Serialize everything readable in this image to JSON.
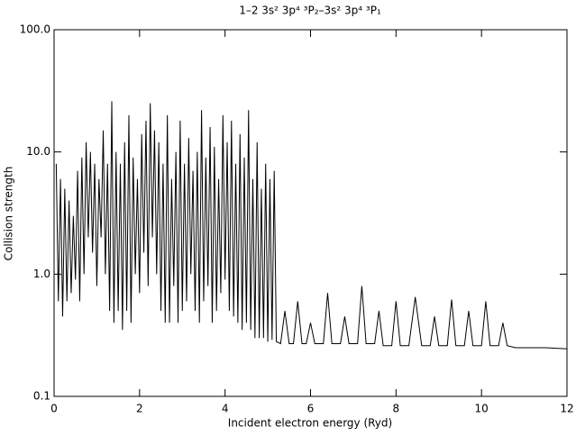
{
  "chart_data": {
    "type": "line",
    "title": "1–2 3s² 3p⁴ ³P₂–3s² 3p⁴ ³P₁",
    "x_label": "Incident electron energy (Ryd)",
    "y_label": "Collision strength",
    "color": "#000000",
    "ylog": true,
    "xlim": [
      0,
      12
    ],
    "xticks": [
      0,
      2,
      4,
      6,
      8,
      10,
      12
    ],
    "ylim": [
      0.1,
      100
    ],
    "yticks": [
      {
        "value": 0.1,
        "label": "0.1"
      },
      {
        "value": 1,
        "label": "1.0"
      },
      {
        "value": 10,
        "label": "10.0"
      },
      {
        "value": 100,
        "label": "100.0"
      }
    ],
    "x": [
      0.05,
      0.1,
      0.15,
      0.2,
      0.25,
      0.3,
      0.35,
      0.4,
      0.45,
      0.5,
      0.55,
      0.6,
      0.65,
      0.7,
      0.75,
      0.8,
      0.85,
      0.9,
      0.95,
      1.0,
      1.05,
      1.1,
      1.15,
      1.2,
      1.25,
      1.3,
      1.35,
      1.4,
      1.45,
      1.5,
      1.55,
      1.6,
      1.65,
      1.7,
      1.75,
      1.8,
      1.85,
      1.9,
      1.95,
      2.0,
      2.05,
      2.1,
      2.15,
      2.2,
      2.25,
      2.3,
      2.35,
      2.4,
      2.45,
      2.5,
      2.55,
      2.6,
      2.65,
      2.7,
      2.75,
      2.8,
      2.85,
      2.9,
      2.95,
      3.0,
      3.05,
      3.1,
      3.15,
      3.2,
      3.25,
      3.3,
      3.35,
      3.4,
      3.45,
      3.5,
      3.55,
      3.6,
      3.65,
      3.7,
      3.75,
      3.8,
      3.85,
      3.9,
      3.95,
      4.0,
      4.05,
      4.1,
      4.15,
      4.2,
      4.25,
      4.3,
      4.35,
      4.4,
      4.45,
      4.5,
      4.55,
      4.6,
      4.65,
      4.7,
      4.75,
      4.8,
      4.85,
      4.9,
      4.95,
      5.0,
      5.05,
      5.1,
      5.15,
      5.2,
      5.3,
      5.4,
      5.5,
      5.6,
      5.7,
      5.8,
      5.9,
      6.0,
      6.1,
      6.3,
      6.4,
      6.5,
      6.7,
      6.8,
      6.9,
      7.1,
      7.2,
      7.3,
      7.5,
      7.6,
      7.7,
      7.9,
      8.0,
      8.1,
      8.3,
      8.45,
      8.6,
      8.8,
      8.9,
      9.0,
      9.2,
      9.3,
      9.4,
      9.6,
      9.7,
      9.8,
      10.0,
      10.1,
      10.2,
      10.4,
      10.5,
      10.6,
      10.8,
      11.0,
      11.5,
      12.0
    ],
    "values": [
      8,
      0.6,
      6,
      0.45,
      5,
      0.6,
      4,
      0.7,
      3,
      0.9,
      7,
      0.6,
      9,
      1.0,
      12,
      2.0,
      10,
      1.5,
      8,
      0.8,
      6,
      2.0,
      15,
      1.0,
      8,
      0.5,
      26,
      0.4,
      10,
      0.5,
      8,
      0.35,
      12,
      0.5,
      20,
      0.4,
      9,
      1.0,
      6,
      0.7,
      14,
      1.5,
      18,
      0.8,
      25,
      2.0,
      15,
      1.0,
      12,
      0.5,
      8,
      0.4,
      20,
      0.4,
      6,
      0.8,
      10,
      0.4,
      18,
      0.5,
      8,
      0.6,
      13,
      1.0,
      7,
      0.5,
      10,
      0.4,
      22,
      0.6,
      9,
      0.8,
      16,
      0.4,
      11,
      0.5,
      6,
      0.7,
      20,
      0.9,
      12,
      0.5,
      18,
      0.45,
      8,
      0.4,
      14,
      0.35,
      9,
      0.4,
      22,
      0.35,
      6,
      0.3,
      12,
      0.3,
      5,
      0.3,
      8,
      0.28,
      6,
      0.29,
      7,
      0.28,
      0.27,
      0.5,
      0.27,
      0.27,
      0.6,
      0.27,
      0.27,
      0.4,
      0.27,
      0.27,
      0.7,
      0.27,
      0.27,
      0.45,
      0.27,
      0.27,
      0.8,
      0.27,
      0.27,
      0.5,
      0.26,
      0.26,
      0.6,
      0.26,
      0.26,
      0.65,
      0.26,
      0.26,
      0.45,
      0.26,
      0.26,
      0.62,
      0.26,
      0.26,
      0.5,
      0.26,
      0.26,
      0.6,
      0.26,
      0.26,
      0.4,
      0.26,
      0.25,
      0.25,
      0.25,
      0.245
    ]
  }
}
